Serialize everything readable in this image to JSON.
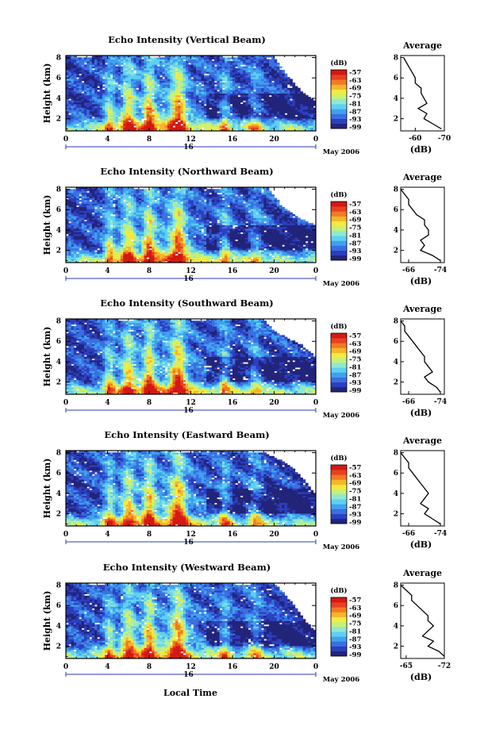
{
  "figure": {
    "xlabel": "Local Time",
    "date_label": "May 2006",
    "day_label": "16",
    "colors": {
      "palette": [
        "#22247a",
        "#2b3fbf",
        "#3a6fe0",
        "#3fa2f0",
        "#5fd0f2",
        "#8fe8d0",
        "#c7f07a",
        "#f5ea3c",
        "#f7b52b",
        "#f27a22",
        "#e84020",
        "#d41812"
      ]
    },
    "colorbar_unit": "(dB)",
    "colorbar_ticks": [
      "-57",
      "-63",
      "-69",
      "-75",
      "-81",
      "-87",
      "-93",
      "-99"
    ],
    "avg_title": "Average",
    "avg_unit": "(dB)"
  },
  "chart_data": [
    {
      "type": "heatmap",
      "title": "Echo Intensity (Vertical Beam)",
      "ylabel": "Height (km)",
      "xticks": [
        "0",
        "4",
        "8",
        "12",
        "16",
        "20",
        "0"
      ],
      "yticks": [
        "2",
        "4",
        "6",
        "8"
      ],
      "xlim": [
        0,
        24
      ],
      "ylim": [
        0.8,
        8.2
      ],
      "colorbar": {
        "label": "(dB)",
        "range": [
          -99,
          -57
        ]
      },
      "average_profile": {
        "title": "Average",
        "xlabel": "(dB)",
        "xticks": [
          "-60",
          "-70"
        ],
        "xlim": [
          -55,
          -70
        ],
        "height": [
          1.0,
          1.5,
          2.0,
          2.5,
          3.0,
          3.5,
          4.0,
          4.5,
          5.0,
          5.5,
          6.0,
          6.5,
          7.0,
          7.5,
          8.0
        ],
        "db": [
          -69,
          -66,
          -63,
          -64,
          -61,
          -64,
          -63,
          -62,
          -62,
          -60,
          -60,
          -59,
          -58,
          -57,
          -56
        ]
      }
    },
    {
      "type": "heatmap",
      "title": "Echo Intensity (Northward Beam)",
      "ylabel": "Height (km)",
      "xticks": [
        "0",
        "4",
        "8",
        "12",
        "16",
        "20",
        "0"
      ],
      "yticks": [
        "2",
        "4",
        "6",
        "8"
      ],
      "xlim": [
        0,
        24
      ],
      "ylim": [
        0.8,
        8.2
      ],
      "colorbar": {
        "label": "(dB)",
        "range": [
          -99,
          -57
        ]
      },
      "average_profile": {
        "title": "Average",
        "xlabel": "(dB)",
        "xticks": [
          "-66",
          "-74"
        ],
        "xlim": [
          -64,
          -75
        ],
        "height": [
          1.0,
          1.5,
          2.0,
          2.5,
          3.0,
          3.5,
          4.0,
          4.5,
          5.0,
          5.5,
          6.0,
          6.5,
          7.0,
          7.5,
          8.0
        ],
        "db": [
          -74,
          -72,
          -69,
          -70,
          -69,
          -71,
          -71,
          -70,
          -70,
          -68,
          -67,
          -66,
          -66,
          -65,
          -64
        ]
      }
    },
    {
      "type": "heatmap",
      "title": "Echo Intensity (Southward Beam)",
      "ylabel": "Height (km)",
      "xticks": [
        "0",
        "4",
        "8",
        "12",
        "16",
        "20",
        "0"
      ],
      "yticks": [
        "2",
        "4",
        "6",
        "8"
      ],
      "xlim": [
        0,
        24
      ],
      "ylim": [
        0.8,
        8.2
      ],
      "colorbar": {
        "label": "(dB)",
        "range": [
          -99,
          -57
        ]
      },
      "average_profile": {
        "title": "Average",
        "xlabel": "(dB)",
        "xticks": [
          "-66",
          "-74"
        ],
        "xlim": [
          -64,
          -75
        ],
        "height": [
          1.0,
          1.5,
          2.0,
          2.5,
          3.0,
          3.5,
          4.0,
          4.5,
          5.0,
          5.5,
          6.0,
          6.5,
          7.0,
          7.5,
          8.0
        ],
        "db": [
          -74,
          -73,
          -71,
          -70,
          -72,
          -71,
          -70,
          -70,
          -69,
          -68,
          -67,
          -66,
          -65,
          -65,
          -64
        ]
      }
    },
    {
      "type": "heatmap",
      "title": "Echo Intensity (Eastward Beam)",
      "ylabel": "Height (km)",
      "xticks": [
        "0",
        "4",
        "8",
        "12",
        "16",
        "20",
        "0"
      ],
      "yticks": [
        "2",
        "4",
        "6",
        "8"
      ],
      "xlim": [
        0,
        24
      ],
      "ylim": [
        0.8,
        8.2
      ],
      "colorbar": {
        "label": "(dB)",
        "range": [
          -99,
          -57
        ]
      },
      "average_profile": {
        "title": "Average",
        "xlabel": "(dB)",
        "xticks": [
          "-66",
          "-74"
        ],
        "xlim": [
          -64,
          -75
        ],
        "height": [
          1.0,
          1.5,
          2.0,
          2.5,
          3.0,
          3.5,
          4.0,
          4.5,
          5.0,
          5.5,
          6.0,
          6.5,
          7.0,
          7.5,
          8.0
        ],
        "db": [
          -74,
          -72,
          -70,
          -71,
          -69,
          -70,
          -71,
          -70,
          -69,
          -68,
          -67,
          -66,
          -66,
          -65,
          -64
        ]
      }
    },
    {
      "type": "heatmap",
      "title": "Echo Intensity (Westward Beam)",
      "ylabel": "Height (km)",
      "xticks": [
        "0",
        "4",
        "8",
        "12",
        "16",
        "20",
        "0"
      ],
      "yticks": [
        "2",
        "4",
        "6",
        "8"
      ],
      "xlim": [
        0,
        24
      ],
      "ylim": [
        0.8,
        8.2
      ],
      "colorbar": {
        "label": "(dB)",
        "range": [
          -99,
          -57
        ]
      },
      "average_profile": {
        "title": "Average",
        "xlabel": "(dB)",
        "xticks": [
          "-65",
          "-72"
        ],
        "xlim": [
          -64,
          -72
        ],
        "height": [
          1.0,
          1.5,
          2.0,
          2.5,
          3.0,
          3.5,
          4.0,
          4.5,
          5.0,
          5.5,
          6.0,
          6.5,
          7.0,
          7.5,
          8.0
        ],
        "db": [
          -72,
          -71,
          -69,
          -70,
          -68,
          -69,
          -70,
          -69,
          -69,
          -68,
          -67,
          -66,
          -66,
          -65,
          -64
        ]
      }
    }
  ]
}
